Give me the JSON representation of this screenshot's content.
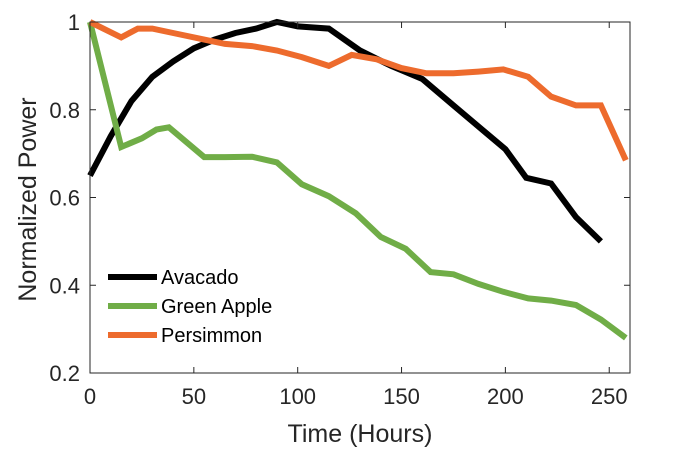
{
  "chart_data": {
    "type": "line",
    "title": "",
    "xlabel": "Time (Hours)",
    "ylabel": "Normalized Power",
    "xlim": [
      0,
      260
    ],
    "ylim": [
      0.2,
      1
    ],
    "xticks": [
      0,
      50,
      100,
      150,
      200,
      250
    ],
    "xtick_labels": [
      "0",
      "50",
      "100",
      "150",
      "200",
      "250"
    ],
    "yticks": [
      0.2,
      0.4,
      0.6,
      0.8,
      1
    ],
    "ytick_labels": [
      "0.2",
      "0.4",
      "0.6",
      "0.8",
      "1"
    ],
    "grid": false,
    "legend_position": "bottom-left",
    "series": [
      {
        "name": "Avacado",
        "color": "#000000",
        "x": [
          0,
          10,
          20,
          30,
          40,
          50,
          60,
          70,
          80,
          90,
          100,
          115,
          130,
          145,
          160,
          175,
          190,
          200,
          210,
          222,
          234,
          246
        ],
        "y": [
          0.65,
          0.74,
          0.82,
          0.875,
          0.91,
          0.94,
          0.96,
          0.975,
          0.985,
          1.0,
          0.99,
          0.985,
          0.935,
          0.9,
          0.87,
          0.81,
          0.75,
          0.71,
          0.645,
          0.632,
          0.555,
          0.5
        ]
      },
      {
        "name": "Green Apple",
        "color": "#70AD47",
        "x": [
          0,
          15,
          25,
          32,
          38,
          55,
          65,
          78,
          90,
          102,
          115,
          128,
          140,
          152,
          164,
          175,
          187,
          199,
          211,
          222,
          234,
          246,
          258
        ],
        "y": [
          1.0,
          0.715,
          0.735,
          0.755,
          0.76,
          0.692,
          0.692,
          0.693,
          0.68,
          0.63,
          0.603,
          0.564,
          0.51,
          0.483,
          0.43,
          0.425,
          0.403,
          0.385,
          0.37,
          0.365,
          0.355,
          0.322,
          0.28
        ]
      },
      {
        "name": "Persimmon",
        "color": "#ED6B2D",
        "x": [
          0,
          15,
          23,
          30,
          40,
          55,
          65,
          78,
          90,
          102,
          115,
          126,
          138,
          150,
          162,
          175,
          187,
          199,
          211,
          222,
          234,
          246,
          258
        ],
        "y": [
          1.0,
          0.965,
          0.985,
          0.985,
          0.975,
          0.96,
          0.95,
          0.945,
          0.935,
          0.92,
          0.9,
          0.925,
          0.915,
          0.895,
          0.883,
          0.883,
          0.887,
          0.892,
          0.875,
          0.83,
          0.81,
          0.81,
          0.685
        ]
      }
    ]
  }
}
